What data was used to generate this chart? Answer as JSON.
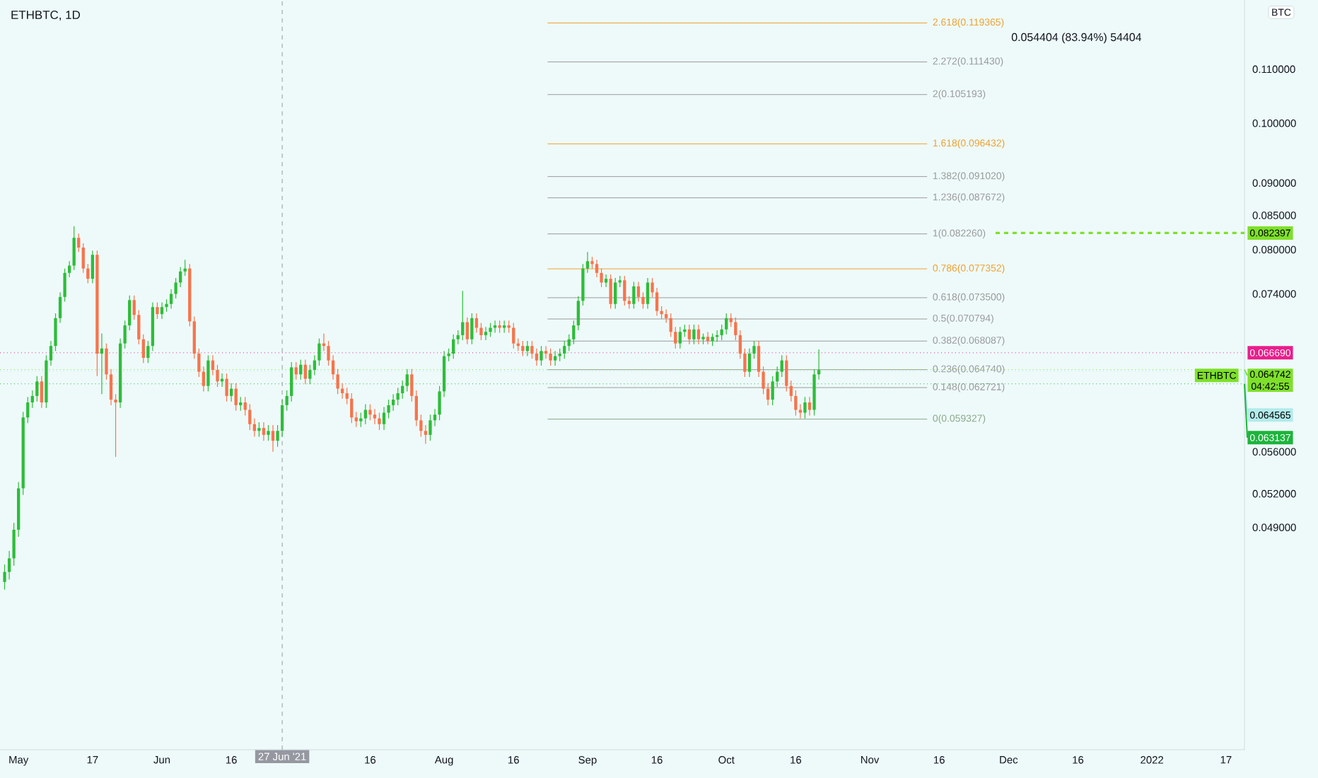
{
  "chart_data": {
    "type": "candlestick",
    "title": "ETHBTC, 1D",
    "log": true,
    "xlim": [
      "2021-04-27",
      "2022-01-21"
    ],
    "ylim": [
      0.0331,
      0.1243
    ],
    "xticks": [
      {
        "value": "2021-05-01",
        "label": "May"
      },
      {
        "value": "2021-05-17",
        "label": "17"
      },
      {
        "value": "2021-06-01",
        "label": "Jun"
      },
      {
        "value": "2021-06-16",
        "label": "16"
      },
      {
        "value": "2021-07-16",
        "label": "16"
      },
      {
        "value": "2021-08-01",
        "label": "Aug"
      },
      {
        "value": "2021-08-16",
        "label": "16"
      },
      {
        "value": "2021-09-01",
        "label": "Sep"
      },
      {
        "value": "2021-09-16",
        "label": "16"
      },
      {
        "value": "2021-10-01",
        "label": "Oct"
      },
      {
        "value": "2021-10-16",
        "label": "16"
      },
      {
        "value": "2021-11-01",
        "label": "Nov"
      },
      {
        "value": "2021-11-16",
        "label": "16"
      },
      {
        "value": "2021-12-01",
        "label": "Dec"
      },
      {
        "value": "2021-12-16",
        "label": "16"
      },
      {
        "value": "2022-01-01",
        "label": "2022"
      },
      {
        "value": "2022-01-17",
        "label": "17"
      }
    ],
    "yticks": [
      {
        "value": 0.049,
        "label": "0.049000"
      },
      {
        "value": 0.052,
        "label": "0.052000"
      },
      {
        "value": 0.056,
        "label": "0.056000"
      },
      {
        "value": 0.074,
        "label": "0.074000"
      },
      {
        "value": 0.08,
        "label": "0.080000"
      },
      {
        "value": 0.085,
        "label": "0.085000"
      },
      {
        "value": 0.09,
        "label": "0.090000"
      },
      {
        "value": 0.1,
        "label": "0.100000"
      },
      {
        "value": 0.11,
        "label": "0.110000"
      }
    ],
    "x": [
      "2021-04-28",
      "2021-04-29",
      "2021-04-30",
      "2021-05-01",
      "2021-05-02",
      "2021-05-03",
      "2021-05-04",
      "2021-05-05",
      "2021-05-06",
      "2021-05-07",
      "2021-05-08",
      "2021-05-09",
      "2021-05-10",
      "2021-05-11",
      "2021-05-12",
      "2021-05-13",
      "2021-05-14",
      "2021-05-15",
      "2021-05-16",
      "2021-05-17",
      "2021-05-18",
      "2021-05-19",
      "2021-05-20",
      "2021-05-21",
      "2021-05-22",
      "2021-05-23",
      "2021-05-24",
      "2021-05-25",
      "2021-05-26",
      "2021-05-27",
      "2021-05-28",
      "2021-05-29",
      "2021-05-30",
      "2021-05-31",
      "2021-06-01",
      "2021-06-02",
      "2021-06-03",
      "2021-06-04",
      "2021-06-05",
      "2021-06-06",
      "2021-06-07",
      "2021-06-08",
      "2021-06-09",
      "2021-06-10",
      "2021-06-11",
      "2021-06-12",
      "2021-06-13",
      "2021-06-14",
      "2021-06-15",
      "2021-06-16",
      "2021-06-17",
      "2021-06-18",
      "2021-06-19",
      "2021-06-20",
      "2021-06-21",
      "2021-06-22",
      "2021-06-23",
      "2021-06-24",
      "2021-06-25",
      "2021-06-26",
      "2021-06-27",
      "2021-06-28",
      "2021-06-29",
      "2021-06-30",
      "2021-07-01",
      "2021-07-02",
      "2021-07-03",
      "2021-07-04",
      "2021-07-05",
      "2021-07-06",
      "2021-07-07",
      "2021-07-08",
      "2021-07-09",
      "2021-07-10",
      "2021-07-11",
      "2021-07-12",
      "2021-07-13",
      "2021-07-14",
      "2021-07-15",
      "2021-07-16",
      "2021-07-17",
      "2021-07-18",
      "2021-07-19",
      "2021-07-20",
      "2021-07-21",
      "2021-07-22",
      "2021-07-23",
      "2021-07-24",
      "2021-07-25",
      "2021-07-26",
      "2021-07-27",
      "2021-07-28",
      "2021-07-29",
      "2021-07-30",
      "2021-07-31",
      "2021-08-01",
      "2021-08-02",
      "2021-08-03",
      "2021-08-04",
      "2021-08-05",
      "2021-08-06",
      "2021-08-07",
      "2021-08-08",
      "2021-08-09",
      "2021-08-10",
      "2021-08-11",
      "2021-08-12",
      "2021-08-13",
      "2021-08-14",
      "2021-08-15",
      "2021-08-16",
      "2021-08-17",
      "2021-08-18",
      "2021-08-19",
      "2021-08-20",
      "2021-08-21",
      "2021-08-22",
      "2021-08-23",
      "2021-08-24",
      "2021-08-25",
      "2021-08-26",
      "2021-08-27",
      "2021-08-28",
      "2021-08-29",
      "2021-08-30",
      "2021-08-31",
      "2021-09-01",
      "2021-09-02",
      "2021-09-03",
      "2021-09-04",
      "2021-09-05",
      "2021-09-06",
      "2021-09-07",
      "2021-09-08",
      "2021-09-09",
      "2021-09-10",
      "2021-09-11",
      "2021-09-12",
      "2021-09-13",
      "2021-09-14",
      "2021-09-15",
      "2021-09-16",
      "2021-09-17",
      "2021-09-18",
      "2021-09-19",
      "2021-09-20",
      "2021-09-21",
      "2021-09-22",
      "2021-09-23",
      "2021-09-24",
      "2021-09-25",
      "2021-09-26",
      "2021-09-27",
      "2021-09-28",
      "2021-09-29",
      "2021-09-30",
      "2021-10-01",
      "2021-10-02",
      "2021-10-03",
      "2021-10-04",
      "2021-10-05",
      "2021-10-06",
      "2021-10-07",
      "2021-10-08",
      "2021-10-09",
      "2021-10-10",
      "2021-10-11",
      "2021-10-12",
      "2021-10-13",
      "2021-10-14",
      "2021-10-15",
      "2021-10-16",
      "2021-10-17",
      "2021-10-18",
      "2021-10-19",
      "2021-10-20",
      "2021-10-21"
    ],
    "ohlc": [
      [
        0.0445,
        0.0459,
        0.0439,
        0.0453
      ],
      [
        0.0453,
        0.047,
        0.0447,
        0.0464
      ],
      [
        0.0464,
        0.0494,
        0.0458,
        0.0488
      ],
      [
        0.0488,
        0.0531,
        0.0482,
        0.0525
      ],
      [
        0.0525,
        0.0601,
        0.0519,
        0.0595
      ],
      [
        0.0595,
        0.0617,
        0.0589,
        0.0611
      ],
      [
        0.0611,
        0.0624,
        0.0605,
        0.0618
      ],
      [
        0.0618,
        0.064,
        0.0612,
        0.0634
      ],
      [
        0.0634,
        0.064,
        0.0605,
        0.0611
      ],
      [
        0.0611,
        0.0664,
        0.0605,
        0.0658
      ],
      [
        0.0658,
        0.0681,
        0.0652,
        0.0675
      ],
      [
        0.0675,
        0.0715,
        0.0669,
        0.0709
      ],
      [
        0.0709,
        0.0742,
        0.0703,
        0.0736
      ],
      [
        0.0736,
        0.0774,
        0.073,
        0.0768
      ],
      [
        0.0768,
        0.0784,
        0.0762,
        0.0778
      ],
      [
        0.0778,
        0.0834,
        0.0772,
        0.0817
      ],
      [
        0.0817,
        0.0823,
        0.0797,
        0.0803
      ],
      [
        0.0803,
        0.0809,
        0.0768,
        0.0774
      ],
      [
        0.0774,
        0.078,
        0.0754,
        0.076
      ],
      [
        0.076,
        0.0799,
        0.0754,
        0.0793
      ],
      [
        0.0793,
        0.0799,
        0.064,
        0.0666
      ],
      [
        0.0666,
        0.069,
        0.062,
        0.0672
      ],
      [
        0.0672,
        0.0678,
        0.0636,
        0.0642
      ],
      [
        0.0642,
        0.0648,
        0.0608,
        0.0614
      ],
      [
        0.0614,
        0.062,
        0.0555,
        0.0611
      ],
      [
        0.0611,
        0.0684,
        0.0605,
        0.0678
      ],
      [
        0.0678,
        0.0706,
        0.0672,
        0.07
      ],
      [
        0.07,
        0.0738,
        0.0694,
        0.0732
      ],
      [
        0.0732,
        0.0738,
        0.0707,
        0.0713
      ],
      [
        0.0713,
        0.0719,
        0.0677,
        0.0683
      ],
      [
        0.0683,
        0.0689,
        0.0655,
        0.0661
      ],
      [
        0.0661,
        0.0681,
        0.0655,
        0.0675
      ],
      [
        0.0675,
        0.0729,
        0.0669,
        0.0723
      ],
      [
        0.0723,
        0.0729,
        0.0708,
        0.0714
      ],
      [
        0.0714,
        0.0729,
        0.0708,
        0.0723
      ],
      [
        0.0723,
        0.0733,
        0.0717,
        0.0727
      ],
      [
        0.0727,
        0.0746,
        0.0721,
        0.074
      ],
      [
        0.074,
        0.0761,
        0.0734,
        0.0755
      ],
      [
        0.0755,
        0.0776,
        0.0749,
        0.077
      ],
      [
        0.077,
        0.0786,
        0.0764,
        0.0774
      ],
      [
        0.0774,
        0.078,
        0.0699,
        0.0705
      ],
      [
        0.0705,
        0.0711,
        0.066,
        0.0666
      ],
      [
        0.0666,
        0.0672,
        0.0639,
        0.0645
      ],
      [
        0.0645,
        0.0651,
        0.0623,
        0.0629
      ],
      [
        0.0629,
        0.0664,
        0.0623,
        0.0658
      ],
      [
        0.0658,
        0.0664,
        0.0641,
        0.0647
      ],
      [
        0.0647,
        0.0653,
        0.0628,
        0.0634
      ],
      [
        0.0634,
        0.0643,
        0.0628,
        0.0637
      ],
      [
        0.0637,
        0.0643,
        0.0612,
        0.0618
      ],
      [
        0.0618,
        0.0632,
        0.0612,
        0.0626
      ],
      [
        0.0626,
        0.0632,
        0.0602,
        0.0608
      ],
      [
        0.0608,
        0.0617,
        0.0602,
        0.0611
      ],
      [
        0.0611,
        0.0617,
        0.0597,
        0.0603
      ],
      [
        0.0603,
        0.0609,
        0.0582,
        0.0588
      ],
      [
        0.0588,
        0.0594,
        0.0575,
        0.0581
      ],
      [
        0.0581,
        0.059,
        0.0575,
        0.0584
      ],
      [
        0.0584,
        0.059,
        0.0571,
        0.0577
      ],
      [
        0.0577,
        0.0587,
        0.0571,
        0.0581
      ],
      [
        0.0581,
        0.0587,
        0.056,
        0.0571
      ],
      [
        0.0571,
        0.0587,
        0.0565,
        0.0581
      ],
      [
        0.0581,
        0.0614,
        0.0575,
        0.0608
      ],
      [
        0.0608,
        0.0624,
        0.0602,
        0.0618
      ],
      [
        0.0618,
        0.0656,
        0.0612,
        0.065
      ],
      [
        0.065,
        0.0656,
        0.0636,
        0.0642
      ],
      [
        0.0642,
        0.0659,
        0.0636,
        0.0653
      ],
      [
        0.0653,
        0.0659,
        0.0631,
        0.0637
      ],
      [
        0.0637,
        0.0653,
        0.0631,
        0.0647
      ],
      [
        0.0647,
        0.0664,
        0.0641,
        0.0658
      ],
      [
        0.0658,
        0.0684,
        0.0652,
        0.0678
      ],
      [
        0.0678,
        0.069,
        0.0669,
        0.0675
      ],
      [
        0.0675,
        0.0681,
        0.0652,
        0.0658
      ],
      [
        0.0658,
        0.0664,
        0.0636,
        0.0642
      ],
      [
        0.0642,
        0.0648,
        0.062,
        0.0626
      ],
      [
        0.0626,
        0.0632,
        0.0615,
        0.0621
      ],
      [
        0.0621,
        0.0627,
        0.0609,
        0.0615
      ],
      [
        0.0615,
        0.0621,
        0.0589,
        0.0595
      ],
      [
        0.0595,
        0.0601,
        0.0585,
        0.0591
      ],
      [
        0.0591,
        0.06,
        0.0585,
        0.0594
      ],
      [
        0.0594,
        0.0609,
        0.0588,
        0.0603
      ],
      [
        0.0603,
        0.0609,
        0.0592,
        0.0598
      ],
      [
        0.0598,
        0.0604,
        0.0588,
        0.0594
      ],
      [
        0.0594,
        0.06,
        0.0582,
        0.0588
      ],
      [
        0.0588,
        0.0606,
        0.0582,
        0.06
      ],
      [
        0.06,
        0.0614,
        0.0594,
        0.0608
      ],
      [
        0.0608,
        0.062,
        0.0602,
        0.0614
      ],
      [
        0.0614,
        0.0627,
        0.0608,
        0.0621
      ],
      [
        0.0621,
        0.0635,
        0.0615,
        0.0629
      ],
      [
        0.0629,
        0.0648,
        0.0623,
        0.0642
      ],
      [
        0.0642,
        0.0648,
        0.0612,
        0.0618
      ],
      [
        0.0618,
        0.0624,
        0.0586,
        0.0592
      ],
      [
        0.0592,
        0.0598,
        0.0575,
        0.0581
      ],
      [
        0.0581,
        0.0587,
        0.0568,
        0.0577
      ],
      [
        0.0577,
        0.0598,
        0.0571,
        0.0592
      ],
      [
        0.0592,
        0.0604,
        0.0586,
        0.0598
      ],
      [
        0.0598,
        0.0629,
        0.0592,
        0.0623
      ],
      [
        0.0623,
        0.0669,
        0.0617,
        0.0663
      ],
      [
        0.0663,
        0.0672,
        0.0657,
        0.0666
      ],
      [
        0.0666,
        0.0689,
        0.066,
        0.0683
      ],
      [
        0.0683,
        0.0694,
        0.0677,
        0.0688
      ],
      [
        0.0688,
        0.0744,
        0.0682,
        0.0704
      ],
      [
        0.0704,
        0.071,
        0.0677,
        0.0683
      ],
      [
        0.0683,
        0.0715,
        0.0677,
        0.0709
      ],
      [
        0.0709,
        0.0715,
        0.0691,
        0.0697
      ],
      [
        0.0697,
        0.0703,
        0.0682,
        0.0688
      ],
      [
        0.0688,
        0.0698,
        0.0682,
        0.0692
      ],
      [
        0.0692,
        0.0703,
        0.0686,
        0.0697
      ],
      [
        0.0697,
        0.0706,
        0.0691,
        0.07
      ],
      [
        0.07,
        0.0706,
        0.0691,
        0.0697
      ],
      [
        0.0697,
        0.0706,
        0.0691,
        0.07
      ],
      [
        0.07,
        0.0706,
        0.0691,
        0.0697
      ],
      [
        0.0697,
        0.0703,
        0.0672,
        0.0678
      ],
      [
        0.0678,
        0.0684,
        0.0669,
        0.0675
      ],
      [
        0.0675,
        0.0681,
        0.0663,
        0.0669
      ],
      [
        0.0669,
        0.0681,
        0.0663,
        0.0675
      ],
      [
        0.0675,
        0.0681,
        0.066,
        0.0666
      ],
      [
        0.0666,
        0.0672,
        0.0652,
        0.0658
      ],
      [
        0.0658,
        0.0675,
        0.0652,
        0.0669
      ],
      [
        0.0669,
        0.0675,
        0.066,
        0.0666
      ],
      [
        0.0666,
        0.0672,
        0.0652,
        0.0658
      ],
      [
        0.0658,
        0.0669,
        0.0652,
        0.0663
      ],
      [
        0.0663,
        0.0672,
        0.0657,
        0.0666
      ],
      [
        0.0666,
        0.0681,
        0.066,
        0.0675
      ],
      [
        0.0675,
        0.0689,
        0.0669,
        0.0683
      ],
      [
        0.0683,
        0.0706,
        0.0677,
        0.07
      ],
      [
        0.07,
        0.0737,
        0.0694,
        0.0731
      ],
      [
        0.0731,
        0.078,
        0.0725,
        0.0774
      ],
      [
        0.0774,
        0.0797,
        0.0768,
        0.0784
      ],
      [
        0.0784,
        0.079,
        0.0774,
        0.078
      ],
      [
        0.078,
        0.0786,
        0.0762,
        0.0768
      ],
      [
        0.0768,
        0.0774,
        0.0749,
        0.0755
      ],
      [
        0.0755,
        0.0766,
        0.0749,
        0.076
      ],
      [
        0.076,
        0.0766,
        0.0721,
        0.0727
      ],
      [
        0.0727,
        0.0761,
        0.0721,
        0.0755
      ],
      [
        0.0755,
        0.0764,
        0.0749,
        0.0758
      ],
      [
        0.0758,
        0.0764,
        0.0725,
        0.0731
      ],
      [
        0.0731,
        0.0737,
        0.0721,
        0.0727
      ],
      [
        0.0727,
        0.0756,
        0.0721,
        0.075
      ],
      [
        0.075,
        0.0756,
        0.073,
        0.0736
      ],
      [
        0.0736,
        0.0742,
        0.0721,
        0.0727
      ],
      [
        0.0727,
        0.0761,
        0.0721,
        0.0755
      ],
      [
        0.0755,
        0.0761,
        0.0736,
        0.0742
      ],
      [
        0.0742,
        0.0748,
        0.0712,
        0.0718
      ],
      [
        0.0718,
        0.0724,
        0.0708,
        0.0714
      ],
      [
        0.0714,
        0.072,
        0.0703,
        0.0709
      ],
      [
        0.0709,
        0.0715,
        0.0686,
        0.0692
      ],
      [
        0.0692,
        0.0698,
        0.0672,
        0.0678
      ],
      [
        0.0678,
        0.0698,
        0.0672,
        0.0692
      ],
      [
        0.0692,
        0.0701,
        0.0686,
        0.0695
      ],
      [
        0.0695,
        0.0701,
        0.0677,
        0.0683
      ],
      [
        0.0683,
        0.0701,
        0.0677,
        0.0695
      ],
      [
        0.0695,
        0.0701,
        0.0677,
        0.0683
      ],
      [
        0.0683,
        0.069,
        0.0677,
        0.0686
      ],
      [
        0.0686,
        0.0692,
        0.0677,
        0.0681
      ],
      [
        0.0681,
        0.069,
        0.0675,
        0.0686
      ],
      [
        0.0686,
        0.0694,
        0.068,
        0.0688
      ],
      [
        0.0688,
        0.0701,
        0.0682,
        0.0695
      ],
      [
        0.0695,
        0.0715,
        0.0689,
        0.0709
      ],
      [
        0.0709,
        0.0715,
        0.0698,
        0.0704
      ],
      [
        0.0704,
        0.071,
        0.0682,
        0.0688
      ],
      [
        0.0688,
        0.0694,
        0.066,
        0.0666
      ],
      [
        0.0666,
        0.0672,
        0.0639,
        0.0645
      ],
      [
        0.0645,
        0.0672,
        0.0639,
        0.0666
      ],
      [
        0.0666,
        0.0681,
        0.066,
        0.0675
      ],
      [
        0.0675,
        0.0681,
        0.0639,
        0.0645
      ],
      [
        0.0645,
        0.0651,
        0.062,
        0.0626
      ],
      [
        0.0626,
        0.0632,
        0.0608,
        0.0614
      ],
      [
        0.0614,
        0.064,
        0.0608,
        0.0634
      ],
      [
        0.0634,
        0.0651,
        0.0628,
        0.0645
      ],
      [
        0.0645,
        0.0664,
        0.0639,
        0.0658
      ],
      [
        0.0658,
        0.0664,
        0.0623,
        0.0629
      ],
      [
        0.0629,
        0.0635,
        0.0612,
        0.0618
      ],
      [
        0.0618,
        0.0624,
        0.0597,
        0.0603
      ],
      [
        0.0603,
        0.0609,
        0.0594,
        0.06
      ],
      [
        0.06,
        0.0617,
        0.0594,
        0.0611
      ],
      [
        0.0611,
        0.0617,
        0.0597,
        0.0603
      ],
      [
        0.0603,
        0.0648,
        0.0597,
        0.0642
      ],
      [
        0.0642,
        0.0671,
        0.0636,
        0.0647
      ]
    ],
    "ref_lines": [
      {
        "axis": "y",
        "value": 0.119365,
        "label": "2.618(0.119365)",
        "color": "#f0a030",
        "line_style": "solid"
      },
      {
        "axis": "y",
        "value": 0.11143,
        "label": "2.272(0.111430)",
        "color": "#9a9a9a",
        "line_style": "solid"
      },
      {
        "axis": "y",
        "value": 0.105193,
        "label": "2(0.105193)",
        "color": "#9a9a9a",
        "line_style": "solid"
      },
      {
        "axis": "y",
        "value": 0.096432,
        "label": "1.618(0.096432)",
        "color": "#f0a030",
        "line_style": "solid"
      },
      {
        "axis": "y",
        "value": 0.09102,
        "label": "1.382(0.091020)",
        "color": "#9a9a9a",
        "line_style": "solid"
      },
      {
        "axis": "y",
        "value": 0.087672,
        "label": "1.236(0.087672)",
        "color": "#9a9a9a",
        "line_style": "solid"
      },
      {
        "axis": "y",
        "value": 0.08226,
        "label": "1(0.082260)",
        "color": "#9a9a9a",
        "line_style": "solid"
      },
      {
        "axis": "y",
        "value": 0.077352,
        "label": "0.786(0.077352)",
        "color": "#f0a030",
        "line_style": "solid"
      },
      {
        "axis": "y",
        "value": 0.0735,
        "label": "0.618(0.073500)",
        "color": "#9a9a9a",
        "line_style": "solid"
      },
      {
        "axis": "y",
        "value": 0.070794,
        "label": "0.5(0.070794)",
        "color": "#9a9a9a",
        "line_style": "solid"
      },
      {
        "axis": "y",
        "value": 0.068087,
        "label": "0.382(0.068087)",
        "color": "#9a9a9a",
        "line_style": "solid"
      },
      {
        "axis": "y",
        "value": 0.06474,
        "label": "0.236(0.064740)",
        "color": "#9a9a9a",
        "line_style": "solid"
      },
      {
        "axis": "y",
        "value": 0.062721,
        "label": "0.148(0.062721)",
        "color": "#9a9a9a",
        "line_style": "solid"
      },
      {
        "axis": "y",
        "value": 0.059327,
        "label": "0(0.059327)",
        "color": "#8aa88a",
        "line_style": "solid"
      },
      {
        "axis": "y",
        "value": 0.082397,
        "label": "0.082397",
        "color": "#7ee02a",
        "line_style": "dashed"
      },
      {
        "axis": "y",
        "value": 0.064742,
        "label": "0.064742",
        "color": "#7ee02a",
        "line_style": "dotted"
      },
      {
        "axis": "y",
        "value": 0.06669,
        "label": "0.066690",
        "color": "#e91e8c",
        "line_style": "dotted"
      },
      {
        "axis": "y",
        "value": 0.064565,
        "label": "0.064565",
        "color": "#b2ebeb",
        "line_style": "dotted"
      },
      {
        "axis": "y",
        "value": 0.063137,
        "label": "0.063137",
        "color": "#1db43c",
        "line_style": "dotted"
      },
      {
        "axis": "x",
        "value": "2021-06-27",
        "label": "27 Jun '21",
        "color": "#9598a1",
        "line_style": "dashed"
      }
    ],
    "annotations": [
      "0.054404 (83.94%) 54404",
      "ETHBTC",
      "BTC",
      "04:42:55"
    ]
  }
}
